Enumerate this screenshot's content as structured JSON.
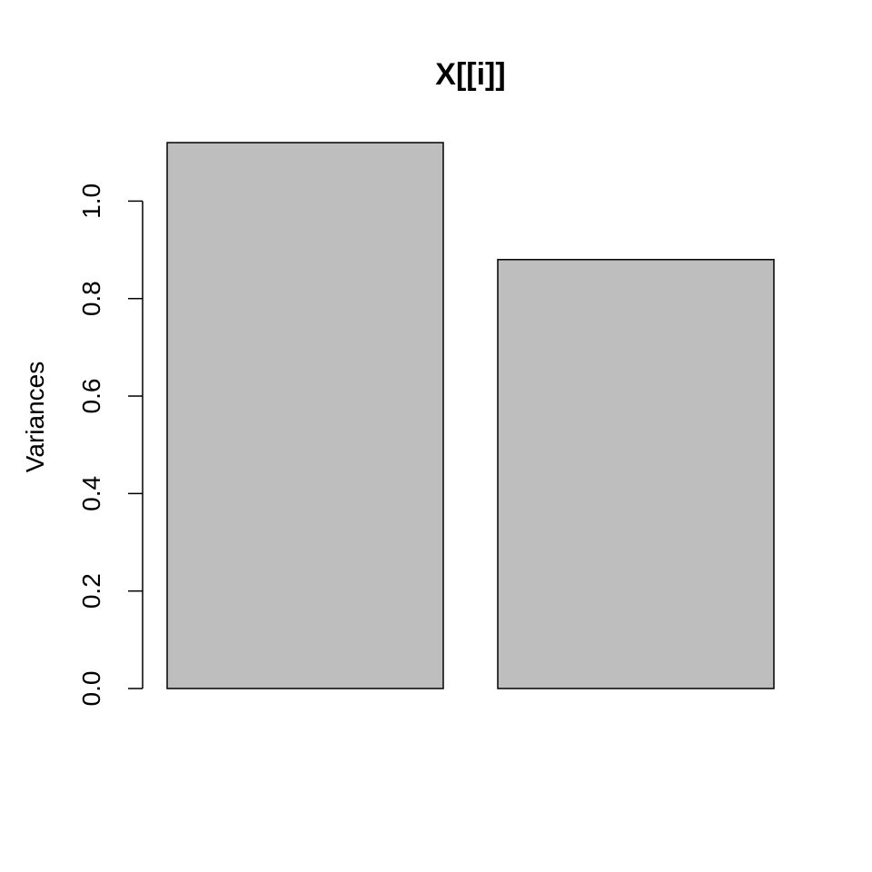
{
  "chart_data": {
    "type": "bar",
    "title": "X[[i]]",
    "xlabel": "",
    "ylabel": "Variances",
    "categories": [
      "",
      ""
    ],
    "values": [
      1.12,
      0.88
    ],
    "ylim": [
      0,
      1.12
    ],
    "yticks": [
      0.0,
      0.2,
      0.4,
      0.6,
      0.8,
      1.0
    ],
    "ytick_labels": [
      "0.0",
      "0.2",
      "0.4",
      "0.6",
      "0.8",
      "1.0"
    ],
    "grid": false,
    "bar_color": "#bebebe",
    "edge_color": "#000000",
    "background": "#ffffff"
  }
}
